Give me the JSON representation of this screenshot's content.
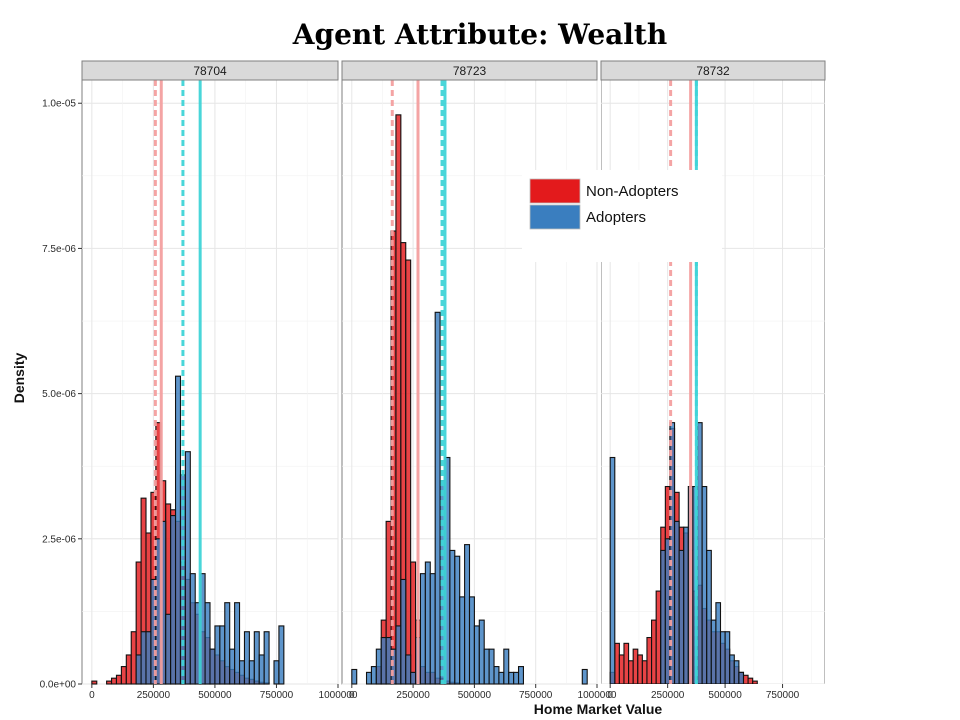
{
  "title": "Agent Attribute: Wealth",
  "chart_data": {
    "type": "bar",
    "subtype": "faceted-overlaid-histogram",
    "xlabel": "Home Market Value",
    "ylabel": "Density",
    "xlim": [
      -40000,
      1000000
    ],
    "ylim": [
      0,
      1.04e-05
    ],
    "x_ticks": [
      {
        "value": 0,
        "label": "0"
      },
      {
        "value": 250000,
        "label": "250000"
      },
      {
        "value": 500000,
        "label": "500000"
      },
      {
        "value": 750000,
        "label": "750000"
      },
      {
        "value": 1000000,
        "label": "1000000"
      }
    ],
    "y_ticks": [
      {
        "value": 0,
        "label": "0.0e+00"
      },
      {
        "value": 2.5e-06,
        "label": "2.5e-06"
      },
      {
        "value": 5e-06,
        "label": "5.0e-06"
      },
      {
        "value": 7.5e-06,
        "label": "7.5e-06"
      },
      {
        "value": 1e-05,
        "label": "1.0e-05"
      }
    ],
    "grid": true,
    "bin_width": 20000,
    "bin_start": 0,
    "legend": {
      "position": "top-right",
      "entries": [
        {
          "label": "Non-Adopters",
          "color": "#e31a1c"
        },
        {
          "label": "Adopters",
          "color": "#3a7ebf"
        }
      ]
    },
    "colors": {
      "non_adopters": "#e31a1c",
      "adopters": "#3a7ebf",
      "non_adopters_line": "#f4a0a0",
      "adopters_line": "#40d4d8"
    },
    "series_order": [
      "Non-Adopters",
      "Adopters"
    ],
    "panels": [
      {
        "strip": "78704",
        "non_adopters": [
          5e-08,
          0,
          0,
          5e-08,
          1e-07,
          1.5e-07,
          3e-07,
          5e-07,
          9e-07,
          2.1e-06,
          3.2e-06,
          2.6e-06,
          3.3e-06,
          4.5e-06,
          3.5e-06,
          3.1e-06,
          3e-06,
          2.8e-06,
          2.1e-06,
          1.8e-06,
          1.4e-06,
          1.2e-06,
          9e-07,
          8e-07,
          6e-07,
          5e-07,
          4e-07,
          3e-07,
          2.5e-07,
          2e-07,
          1.5e-07,
          1e-07,
          8e-08,
          5e-08,
          3e-08,
          2e-08,
          0,
          0,
          0,
          0
        ],
        "adopters": [
          0,
          0,
          0,
          0,
          0,
          0,
          0,
          0,
          0,
          5e-07,
          9e-07,
          9e-07,
          1.8e-06,
          2.5e-06,
          2.8e-06,
          1.2e-06,
          2.9e-06,
          5.3e-06,
          3.6e-06,
          4e-06,
          1.9e-06,
          1.4e-06,
          1.9e-06,
          1.4e-06,
          6e-07,
          1e-06,
          1e-06,
          1.4e-06,
          6e-07,
          1.4e-06,
          4e-07,
          9e-07,
          4e-07,
          9e-07,
          5e-07,
          9e-07,
          0,
          4e-07,
          1e-06,
          0
        ],
        "median_non_adopters": 258000,
        "mean_non_adopters": 282000,
        "median_adopters": 370000,
        "mean_adopters": 440000
      },
      {
        "strip": "78723",
        "non_adopters": [
          0,
          0,
          0,
          0,
          0,
          3e-07,
          1.1e-06,
          2.8e-06,
          7.8e-06,
          9.8e-06,
          7.6e-06,
          7.3e-06,
          2.1e-06,
          1.1e-06,
          3e-07,
          2e-07,
          2e-07,
          1e-07,
          1e-07,
          5e-08,
          3e-08,
          2e-08,
          0,
          0,
          0,
          0,
          0,
          0,
          0,
          0,
          0,
          0,
          0,
          0,
          0,
          0,
          0,
          0,
          0,
          0
        ],
        "adopters": [
          2.5e-07,
          0,
          0,
          2e-07,
          3e-07,
          6e-07,
          8e-07,
          8e-07,
          6e-07,
          1e-06,
          1.8e-06,
          5e-07,
          2e-07,
          8e-07,
          1.9e-06,
          2.1e-06,
          1.9e-06,
          6.4e-06,
          3.5e-06,
          3.9e-06,
          2.3e-06,
          2.2e-06,
          1.5e-06,
          2.4e-06,
          1.5e-06,
          1e-06,
          1.1e-06,
          6e-07,
          6e-07,
          3e-07,
          2e-07,
          6e-07,
          2e-07,
          2e-07,
          3e-07,
          0,
          0,
          0,
          0,
          0,
          0,
          0,
          0,
          0,
          0,
          0,
          0,
          2.5e-07,
          0
        ],
        "median_non_adopters": 165000,
        "mean_non_adopters": 270000,
        "median_adopters": 368000,
        "mean_adopters": 380000
      },
      {
        "strip": "78732",
        "non_adopters": [
          2e-07,
          7e-07,
          5e-07,
          7e-07,
          4e-07,
          6e-07,
          5e-07,
          4e-07,
          8e-07,
          1.1e-06,
          1.6e-06,
          2.7e-06,
          3.4e-06,
          4.4e-06,
          3.3e-06,
          2.7e-06,
          2.6e-06,
          2.3e-06,
          1.6e-06,
          1.7e-06,
          1.3e-06,
          1.1e-06,
          9e-07,
          9e-07,
          7e-07,
          6e-07,
          4e-07,
          3e-07,
          2e-07,
          1.5e-07,
          1e-07,
          5e-08
        ],
        "adopters": [
          3.9e-06,
          0,
          0,
          0,
          0,
          0,
          0,
          0,
          0,
          0,
          0,
          2.3e-06,
          2.5e-06,
          4.5e-06,
          2.8e-06,
          2.3e-06,
          2.7e-06,
          3.4e-06,
          3.4e-06,
          4.5e-06,
          3.4e-06,
          2.3e-06,
          1.1e-06,
          1.4e-06,
          9e-07,
          9e-07,
          5e-07,
          4e-07,
          2e-07,
          0,
          0,
          0
        ],
        "median_non_adopters": 263000,
        "mean_non_adopters": 350000,
        "median_adopters": 375000,
        "mean_adopters": 375000
      }
    ]
  }
}
